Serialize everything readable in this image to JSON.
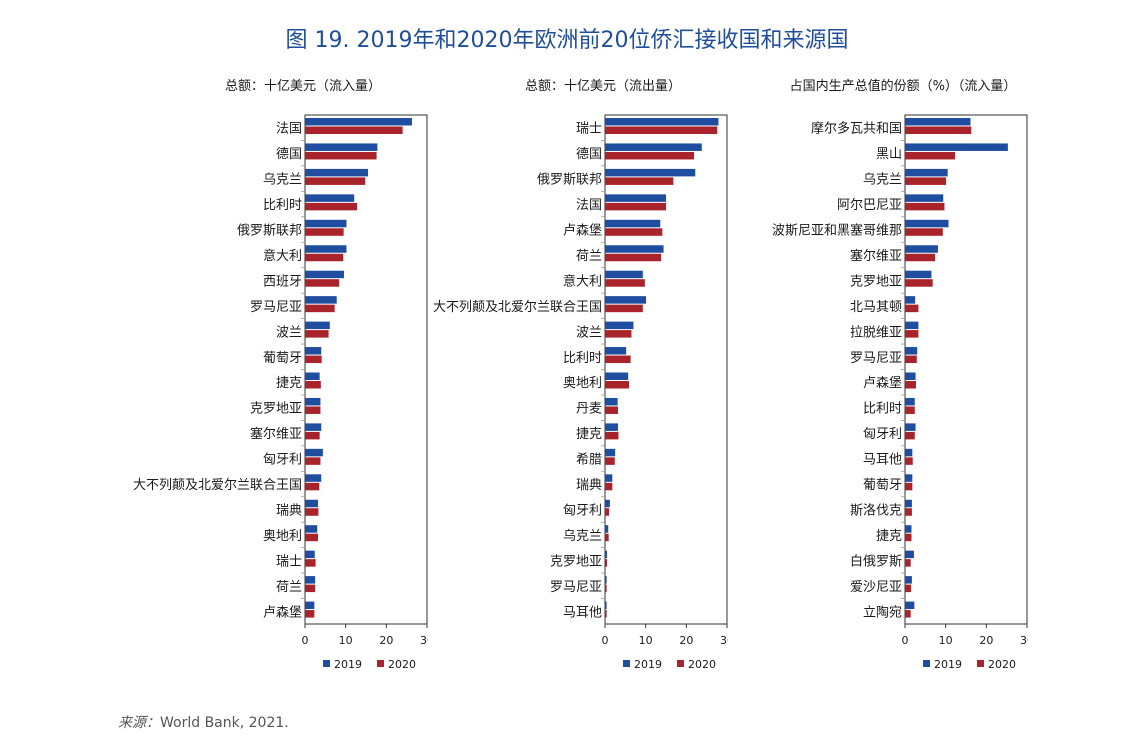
{
  "figure": {
    "title": "图 19. 2019年和2020年欧洲前20位侨汇接收国和来源国",
    "source_label": "来源：",
    "source_text": "World Bank, 2021."
  },
  "colors": {
    "series_2019": "#1f4ea1",
    "series_2020": "#a8232a",
    "title": "#1f4e9c"
  },
  "chart_data": [
    {
      "type": "bar",
      "orientation": "horizontal",
      "unit_label": "总额：十亿美元（流入量）",
      "categories": [
        "法国",
        "德国",
        "乌克兰",
        "比利时",
        "俄罗斯联邦",
        "意大利",
        "西班牙",
        "罗马尼亚",
        "波兰",
        "葡萄牙",
        "捷克",
        "克罗地亚",
        "塞尔维亚",
        "匈牙利",
        "大不列颠及北爱尔兰联合王国",
        "瑞典",
        "奥地利",
        "瑞士",
        "荷兰",
        "卢森堡"
      ],
      "series": [
        {
          "name": "2019",
          "values": [
            26.3,
            17.8,
            15.5,
            12.1,
            10.2,
            10.2,
            9.6,
            7.8,
            6.1,
            4.0,
            3.6,
            3.8,
            4.0,
            4.4,
            4.0,
            3.2,
            3.0,
            2.4,
            2.5,
            2.3
          ]
        },
        {
          "name": "2020",
          "values": [
            24.0,
            17.6,
            14.8,
            12.8,
            9.5,
            9.4,
            8.4,
            7.3,
            5.8,
            4.1,
            3.9,
            3.8,
            3.6,
            3.8,
            3.5,
            3.3,
            3.2,
            2.6,
            2.5,
            2.3
          ]
        }
      ],
      "xlim": [
        0,
        30
      ],
      "xticks": [
        0,
        10,
        20,
        30
      ]
    },
    {
      "type": "bar",
      "orientation": "horizontal",
      "unit_label": "总额：十亿美元（流出量）",
      "categories": [
        "瑞士",
        "德国",
        "俄罗斯联邦",
        "法国",
        "卢森堡",
        "荷兰",
        "意大利",
        "大不列颠及北爱尔兰联合王国",
        "波兰",
        "比利时",
        "奥地利",
        "丹麦",
        "捷克",
        "希腊",
        "瑞典",
        "匈牙利",
        "乌克兰",
        "克罗地亚",
        "罗马尼亚",
        "马耳他"
      ],
      "series": [
        {
          "name": "2019",
          "values": [
            27.9,
            23.8,
            22.2,
            15.0,
            13.6,
            14.4,
            9.3,
            10.1,
            7.0,
            5.2,
            5.7,
            3.1,
            3.2,
            2.5,
            1.8,
            1.2,
            0.8,
            0.5,
            0.4,
            0.4
          ]
        },
        {
          "name": "2020",
          "values": [
            27.6,
            21.9,
            16.8,
            15.0,
            14.1,
            13.8,
            9.8,
            9.3,
            6.5,
            6.3,
            5.9,
            3.2,
            3.3,
            2.4,
            1.8,
            1.0,
            0.9,
            0.5,
            0.4,
            0.4
          ]
        }
      ],
      "xlim": [
        0,
        30
      ],
      "xticks": [
        0,
        10,
        20,
        30
      ]
    },
    {
      "type": "bar",
      "orientation": "horizontal",
      "unit_label": "占国内生产总值的份额（%）（流入量）",
      "categories": [
        "摩尔多瓦共和国",
        "黑山",
        "乌克兰",
        "阿尔巴尼亚",
        "波斯尼亚和黑塞哥维那",
        "塞尔维亚",
        "克罗地亚",
        "北马其顿",
        "拉脱维亚",
        "罗马尼亚",
        "卢森堡",
        "比利时",
        "匈牙利",
        "马耳他",
        "葡萄牙",
        "斯洛伐克",
        "捷克",
        "白俄罗斯",
        "爱沙尼亚",
        "立陶宛"
      ],
      "series": [
        {
          "name": "2019",
          "values": [
            16.1,
            25.3,
            10.5,
            9.4,
            10.7,
            8.1,
            6.5,
            2.5,
            3.3,
            3.0,
            2.6,
            2.4,
            2.6,
            1.8,
            1.8,
            1.7,
            1.6,
            2.2,
            1.7,
            2.3
          ]
        },
        {
          "name": "2020",
          "values": [
            16.3,
            12.3,
            10.1,
            9.7,
            9.3,
            7.4,
            6.8,
            3.3,
            3.3,
            2.9,
            2.7,
            2.4,
            2.4,
            1.9,
            1.8,
            1.7,
            1.6,
            1.4,
            1.5,
            1.4
          ]
        }
      ],
      "xlim": [
        0,
        30
      ],
      "xticks": [
        0,
        10,
        20,
        30
      ]
    }
  ]
}
